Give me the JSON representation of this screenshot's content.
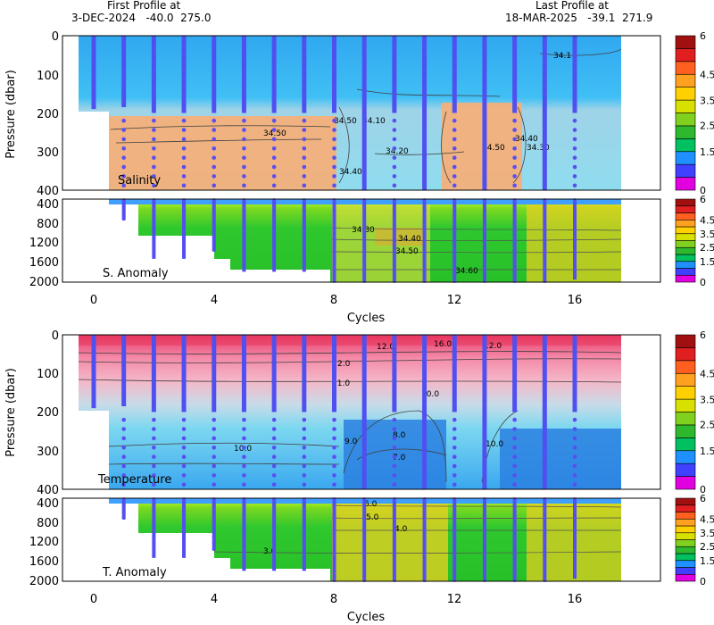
{
  "header": {
    "first_label": "First Profile at",
    "first_value": "3-DEC-2024   -40.0  275.0",
    "last_label": "Last Profile at",
    "last_value": "18-MAR-2025   -39.1  271.9"
  },
  "chart_data": [
    {
      "type": "heatmap",
      "panel": "salinity",
      "title": "Salinity",
      "ylabel": "Pressure (dbar)",
      "xlim": [
        -1.5,
        18.5
      ],
      "ylim": [
        400,
        0
      ],
      "yticks": [
        0,
        100,
        200,
        300,
        400
      ],
      "contour_labels": [
        "34.10",
        "34.50",
        "34.50",
        "34.10",
        "34.20",
        "34.40",
        "34.50",
        "34.40",
        "34.30",
        "34.1"
      ],
      "colorbar_ticks": [
        "6",
        "4.5",
        "3.5",
        "2.5",
        "1.5",
        "0"
      ]
    },
    {
      "type": "heatmap",
      "panel": "salinity-anomaly",
      "title": "S. Anomaly",
      "xlabel": "Cycles",
      "xlim": [
        -1.5,
        18.5
      ],
      "ylim": [
        2000,
        400
      ],
      "yticks": [
        400,
        800,
        1200,
        1600,
        2000
      ],
      "xticks": [
        0,
        4,
        8,
        12,
        16
      ],
      "contour_labels": [
        "34.30",
        "34.40",
        "34.50",
        "34.60"
      ],
      "colorbar_ticks": [
        "6",
        "4.5",
        "3.5",
        "2.5",
        "1.5",
        "0"
      ]
    },
    {
      "type": "heatmap",
      "panel": "temperature",
      "title": "Temperature",
      "ylabel": "Pressure (dbar)",
      "xlim": [
        -1.5,
        18.5
      ],
      "ylim": [
        400,
        0
      ],
      "yticks": [
        0,
        100,
        200,
        300,
        400
      ],
      "contour_labels": [
        "12.0",
        "16.0",
        "12.0",
        "2.0",
        "11.0",
        "10.0",
        "10.0",
        "9.0",
        "8.0",
        "10.0",
        "7.0"
      ],
      "colorbar_ticks": [
        "6",
        "4.5",
        "3.5",
        "2.5",
        "1.5",
        "0"
      ]
    },
    {
      "type": "heatmap",
      "panel": "temperature-anomaly",
      "title": "T. Anomaly",
      "xlabel": "Cycles",
      "xlim": [
        -1.5,
        18.5
      ],
      "ylim": [
        2000,
        400
      ],
      "yticks": [
        400,
        800,
        1200,
        1600,
        2000
      ],
      "xticks": [
        0,
        4,
        8,
        12,
        16
      ],
      "contour_labels": [
        "6.0",
        "5.0",
        "4.0",
        "3.0"
      ],
      "colorbar_ticks": [
        "6",
        "4.5",
        "3.5",
        "2.5",
        "1.5",
        "0"
      ]
    }
  ],
  "profiles": {
    "cycles": [
      0,
      1,
      2,
      3,
      4,
      5,
      6,
      7,
      8,
      9,
      10,
      11,
      12,
      13,
      14,
      15,
      16
    ],
    "deep_start_by_cycle": [
      null,
      800,
      1550,
      1550,
      1400,
      1800,
      1800,
      1800,
      2000,
      2000,
      2000,
      2000,
      2000,
      2000,
      2000,
      2000,
      1950
    ]
  },
  "colors": {
    "colorbar": [
      "#e000e0",
      "#4040ff",
      "#1e90ff",
      "#00c060",
      "#2db82d",
      "#80d020",
      "#d8e000",
      "#ffd000",
      "#ffa020",
      "#ff6020",
      "#e02020",
      "#a01010"
    ],
    "profile_line": "#5050f0",
    "profile_dot": "#5a4ef0"
  }
}
